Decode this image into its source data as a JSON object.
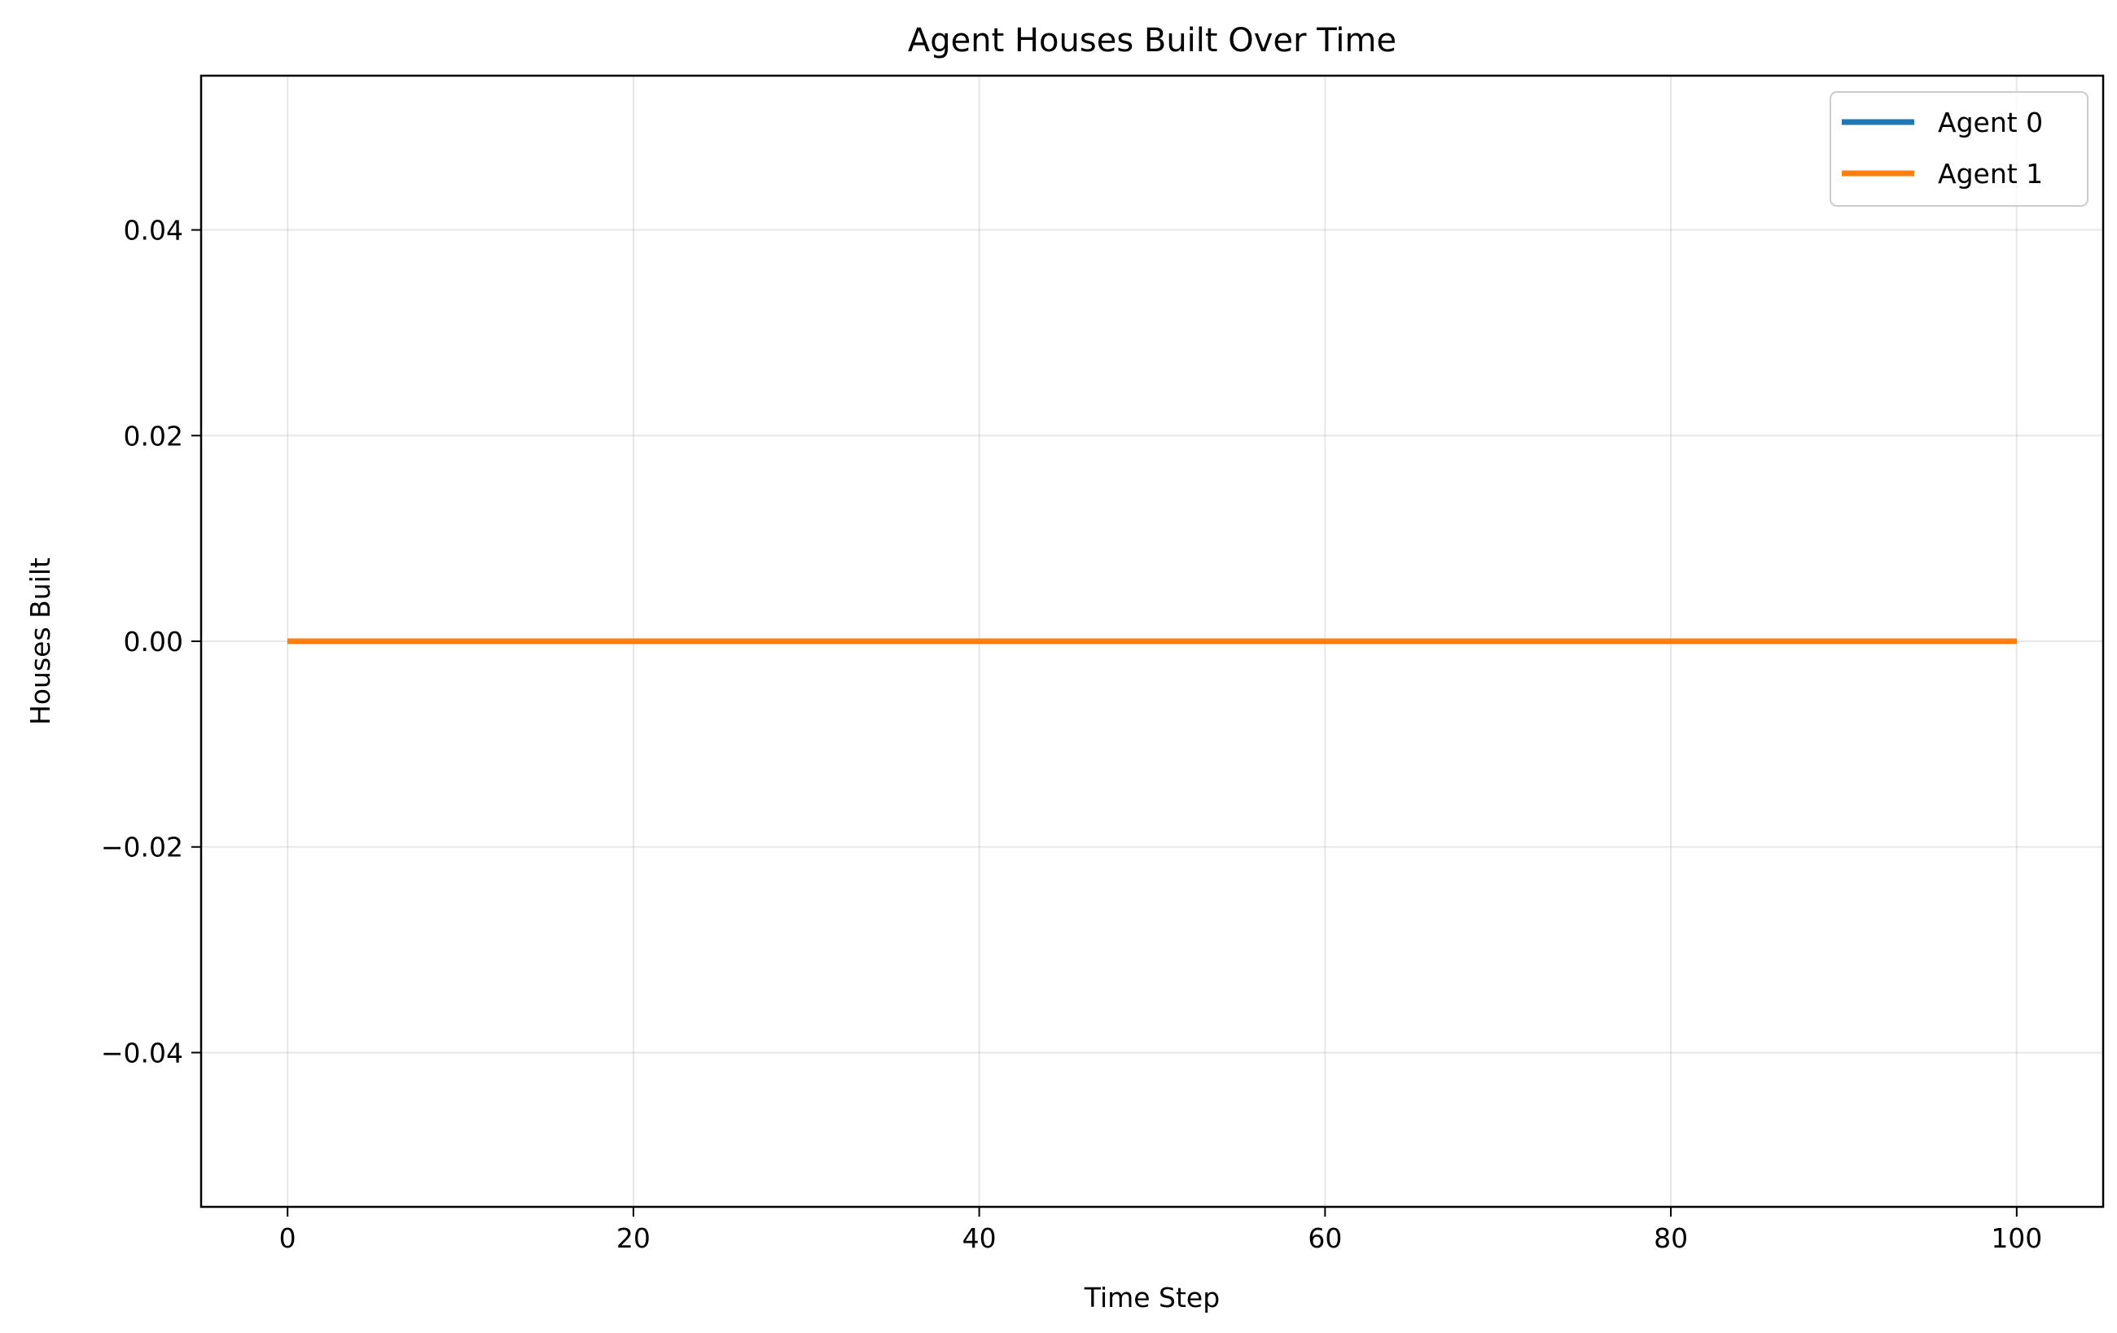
{
  "chart_data": {
    "type": "line",
    "title": "Agent Houses Built Over Time",
    "xlabel": "Time Step",
    "ylabel": "Houses Built",
    "xlim": [
      -5,
      105
    ],
    "ylim": [
      -0.055,
      0.055
    ],
    "x_ticks": [
      0,
      20,
      40,
      60,
      80,
      100
    ],
    "x_tick_labels": [
      "0",
      "20",
      "40",
      "60",
      "80",
      "100"
    ],
    "y_ticks": [
      -0.04,
      -0.02,
      0.0,
      0.02,
      0.04
    ],
    "y_tick_labels": [
      "−0.04",
      "−0.02",
      "0.00",
      "0.02",
      "0.04"
    ],
    "grid": true,
    "legend_position": "top-right",
    "series": [
      {
        "name": "Agent 0",
        "color": "#1f77b4",
        "x": [
          0,
          100
        ],
        "y": [
          0,
          0
        ]
      },
      {
        "name": "Agent 1",
        "color": "#ff7f0e",
        "x": [
          0,
          100
        ],
        "y": [
          0,
          0
        ]
      }
    ]
  }
}
